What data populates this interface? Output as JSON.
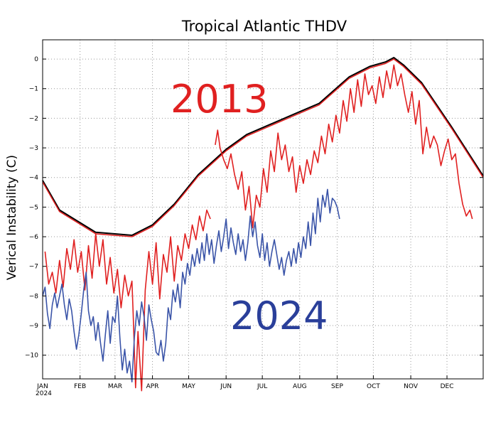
{
  "chart_data": {
    "type": "line",
    "title": "Tropical Atlantic THDV",
    "ylabel": "Verical Instability (C)",
    "xlabel": "",
    "ylim": [
      -10.8,
      0.65
    ],
    "xlim": [
      1,
      366
    ],
    "grid": true,
    "x_ticks": [
      {
        "day": 1,
        "label": "JAN"
      },
      {
        "day": 32,
        "label": "FEB"
      },
      {
        "day": 61,
        "label": "MAR"
      },
      {
        "day": 92,
        "label": "APR"
      },
      {
        "day": 122,
        "label": "MAY"
      },
      {
        "day": 153,
        "label": "JUN"
      },
      {
        "day": 183,
        "label": "JUL"
      },
      {
        "day": 214,
        "label": "AUG"
      },
      {
        "day": 245,
        "label": "SEP"
      },
      {
        "day": 275,
        "label": "OCT"
      },
      {
        "day": 306,
        "label": "NOV"
      },
      {
        "day": 336,
        "label": "DEC"
      }
    ],
    "x_year_label": "2024",
    "y_ticks": [
      0,
      -1,
      -2,
      -3,
      -4,
      -5,
      -6,
      -7,
      -8,
      -9,
      -10
    ],
    "annotations": [
      {
        "text": "2013",
        "color": "#e02020"
      },
      {
        "text": "2024",
        "color": "#2a3f9a"
      }
    ],
    "series": [
      {
        "color": "#000000",
        "x": [
          1,
          15,
          45,
          75,
          92,
          110,
          130,
          153,
          170,
          190,
          210,
          230,
          255,
          272,
          285,
          292,
          300,
          315,
          340,
          366
        ],
        "y": [
          -4.1,
          -5.1,
          -5.85,
          -5.95,
          -5.6,
          -4.9,
          -3.9,
          -3.05,
          -2.55,
          -2.2,
          -1.85,
          -1.5,
          -0.6,
          -0.25,
          -0.1,
          0.05,
          -0.2,
          -0.8,
          -2.3,
          -3.95
        ]
      },
      {
        "color": "#e02020",
        "x": [
          1,
          15,
          45,
          75,
          92,
          110,
          130,
          153,
          170,
          190,
          210,
          230,
          255,
          272,
          285,
          292,
          300,
          315,
          340,
          366
        ],
        "y": [
          -4.15,
          -5.15,
          -5.9,
          -6.0,
          -5.65,
          -4.95,
          -3.95,
          -3.1,
          -2.6,
          -2.25,
          -1.9,
          -1.55,
          -0.65,
          -0.3,
          -0.15,
          0.0,
          -0.25,
          -0.85,
          -2.35,
          -4.0
        ]
      },
      {
        "color": "#e02020",
        "x": [
          3,
          6,
          9,
          12,
          15,
          18,
          21,
          24,
          27,
          30,
          33,
          36,
          39,
          42,
          45,
          48,
          51,
          54,
          57,
          60,
          63,
          66,
          69,
          72,
          75,
          76,
          78,
          80,
          83,
          86,
          89,
          92,
          95,
          98,
          101,
          104,
          107,
          110,
          113,
          116,
          119,
          122,
          125,
          128,
          131,
          134,
          137,
          140
        ],
        "y": [
          -6.5,
          -7.6,
          -7.2,
          -7.9,
          -6.8,
          -7.7,
          -6.4,
          -7.1,
          -6.1,
          -7.2,
          -6.5,
          -7.8,
          -6.3,
          -7.4,
          -5.9,
          -7.0,
          -6.1,
          -7.6,
          -6.7,
          -7.9,
          -7.1,
          -8.4,
          -7.3,
          -8.0,
          -7.5,
          -8.6,
          -11.1,
          -9.2,
          -11.2,
          -7.8,
          -6.5,
          -7.6,
          -6.2,
          -8.1,
          -6.6,
          -7.2,
          -6.0,
          -7.5,
          -6.3,
          -6.8,
          -5.9,
          -6.4,
          -5.6,
          -6.1,
          -5.3,
          -5.8,
          -5.1,
          -5.4
        ]
      },
      {
        "color": "#e02020",
        "x": [
          144,
          146,
          148,
          151,
          154,
          157,
          160,
          163,
          166,
          169,
          172,
          175,
          178,
          181,
          184,
          187,
          190,
          193,
          196,
          199,
          202,
          205,
          208,
          211,
          214,
          217,
          220,
          223,
          226,
          229,
          232,
          235,
          238,
          241,
          244,
          247,
          250,
          253,
          256,
          259,
          262,
          265,
          268,
          271,
          274,
          277,
          280,
          283,
          286,
          289,
          292,
          295,
          298,
          301,
          304,
          307,
          310,
          313,
          316,
          319,
          322,
          325,
          328,
          331,
          334,
          337,
          340,
          343,
          346,
          349,
          352,
          355,
          357
        ],
        "y": [
          -2.9,
          -2.4,
          -3.0,
          -3.4,
          -3.7,
          -3.2,
          -3.9,
          -4.4,
          -3.8,
          -5.1,
          -4.3,
          -5.7,
          -4.6,
          -5.0,
          -3.7,
          -4.5,
          -3.1,
          -3.8,
          -2.5,
          -3.4,
          -2.9,
          -3.8,
          -3.3,
          -4.5,
          -3.6,
          -4.2,
          -3.4,
          -3.9,
          -3.1,
          -3.5,
          -2.6,
          -3.2,
          -2.2,
          -2.8,
          -1.9,
          -2.5,
          -1.4,
          -2.1,
          -1.0,
          -1.8,
          -0.7,
          -1.6,
          -0.5,
          -1.2,
          -0.9,
          -1.5,
          -0.6,
          -1.3,
          -0.4,
          -1.0,
          -0.2,
          -0.9,
          -0.5,
          -1.2,
          -1.8,
          -1.1,
          -2.2,
          -1.4,
          -3.2,
          -2.3,
          -3.0,
          -2.6,
          -2.9,
          -3.6,
          -3.1,
          -2.7,
          -3.4,
          -3.2,
          -4.2,
          -4.9,
          -5.3,
          -5.1,
          -5.4
        ]
      },
      {
        "color": "#3a54a8",
        "x": [
          1,
          3,
          5,
          7,
          9,
          11,
          13,
          15,
          17,
          19,
          21,
          23,
          25,
          27,
          29,
          31,
          33,
          35,
          37,
          39,
          41,
          43,
          45,
          47,
          49,
          51,
          53,
          55,
          57,
          59,
          61,
          63,
          65,
          67,
          69,
          71,
          73,
          75,
          77,
          79,
          81,
          83,
          85,
          87,
          89,
          91,
          93,
          95,
          97,
          99,
          101,
          103,
          105,
          107,
          109,
          111,
          113,
          115,
          117,
          119,
          121,
          123,
          125,
          127,
          129,
          131,
          133,
          135,
          137,
          139,
          141,
          143,
          145,
          147,
          149,
          151,
          153,
          155,
          157,
          159,
          161,
          163,
          165,
          167,
          169,
          171,
          173,
          175,
          177,
          179,
          181,
          183,
          185,
          187,
          189,
          191,
          193,
          195,
          197,
          199,
          201,
          203,
          205,
          207,
          209,
          211,
          213,
          215,
          217,
          219,
          221,
          223,
          225,
          227,
          229,
          231,
          233,
          235,
          237,
          239,
          241,
          243,
          245,
          247
        ],
        "y": [
          -8.0,
          -7.7,
          -8.6,
          -9.1,
          -8.3,
          -7.9,
          -8.4,
          -8.0,
          -7.6,
          -8.3,
          -8.8,
          -8.1,
          -8.5,
          -9.2,
          -9.8,
          -9.3,
          -8.6,
          -7.8,
          -7.2,
          -8.5,
          -9.0,
          -8.7,
          -9.5,
          -8.9,
          -9.6,
          -10.2,
          -9.3,
          -8.5,
          -9.6,
          -8.7,
          -8.9,
          -8.0,
          -9.4,
          -10.5,
          -9.8,
          -10.6,
          -10.2,
          -10.9,
          -9.4,
          -8.5,
          -9.0,
          -8.2,
          -8.7,
          -9.5,
          -8.3,
          -8.8,
          -9.2,
          -9.9,
          -10.0,
          -9.5,
          -10.2,
          -9.6,
          -8.4,
          -8.8,
          -7.8,
          -8.2,
          -7.6,
          -8.4,
          -7.2,
          -7.6,
          -6.9,
          -7.3,
          -6.6,
          -7.0,
          -6.4,
          -6.9,
          -6.2,
          -6.8,
          -5.9,
          -6.6,
          -6.1,
          -6.9,
          -6.3,
          -5.8,
          -6.5,
          -6.0,
          -5.4,
          -6.4,
          -5.7,
          -6.2,
          -6.6,
          -5.9,
          -6.5,
          -6.1,
          -6.8,
          -6.2,
          -5.3,
          -6.0,
          -5.5,
          -6.3,
          -6.7,
          -5.9,
          -6.8,
          -6.2,
          -7.0,
          -6.5,
          -6.1,
          -6.6,
          -7.1,
          -6.7,
          -7.3,
          -6.8,
          -6.5,
          -7.0,
          -6.4,
          -6.9,
          -6.2,
          -6.7,
          -6.0,
          -6.4,
          -5.5,
          -6.3,
          -5.2,
          -5.9,
          -4.7,
          -5.5,
          -4.6,
          -5.0,
          -4.4,
          -5.2,
          -4.7,
          -4.8,
          -5.0,
          -5.4
        ]
      }
    ]
  }
}
